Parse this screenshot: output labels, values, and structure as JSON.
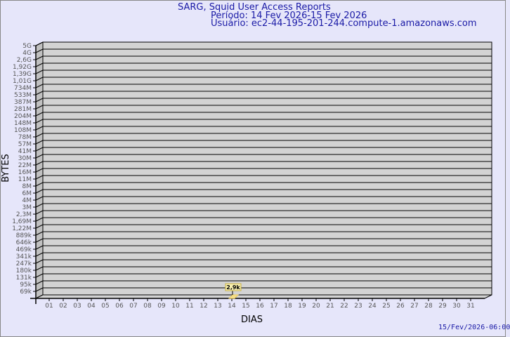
{
  "chart_data": {
    "type": "bar",
    "title": "SARG, Squid User Access Reports",
    "subtitle_period": "Período: 14 Fev 2026-15 Fev 2026",
    "subtitle_user": "Usuário: ec2-44-195-201-244.compute-1.amazonaws.com",
    "xlabel": "DIAS",
    "ylabel": "BYTES",
    "categories": [
      "01",
      "02",
      "03",
      "04",
      "05",
      "06",
      "07",
      "08",
      "09",
      "10",
      "11",
      "12",
      "13",
      "14",
      "15",
      "16",
      "17",
      "18",
      "19",
      "20",
      "21",
      "22",
      "23",
      "24",
      "25",
      "26",
      "27",
      "28",
      "29",
      "30",
      "31"
    ],
    "y_tick_labels": [
      "5G",
      "4G",
      "2,6G",
      "1,92G",
      "1,39G",
      "1,01G",
      "734M",
      "533M",
      "387M",
      "281M",
      "204M",
      "148M",
      "108M",
      "78M",
      "57M",
      "41M",
      "30M",
      "22M",
      "16M",
      "11M",
      "8M",
      "6M",
      "4M",
      "3M",
      "2,3M",
      "1,69M",
      "1,22M",
      "889k",
      "646k",
      "469k",
      "341k",
      "247k",
      "180k",
      "131k",
      "95k",
      "69k"
    ],
    "y_scale": "log",
    "bars": [
      {
        "category": "14",
        "value_label": "2,9k"
      }
    ],
    "grid": true,
    "colors": {
      "title": "#1a1aa6",
      "wall": "#d3d3d3",
      "bar": "#f5e08a",
      "background": "#e6e6fa"
    }
  },
  "footer": {
    "timestamp": "15/Fev/2026-06:00"
  }
}
